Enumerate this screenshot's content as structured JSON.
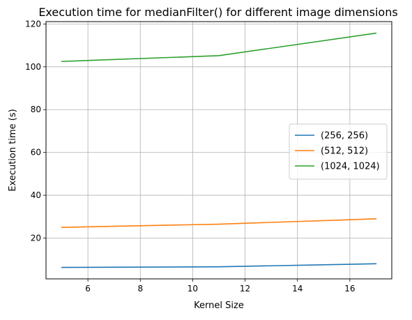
{
  "chart_data": {
    "type": "line",
    "title": "Execution time for medianFilter() for different image dimensions",
    "xlabel": "Kernel Size",
    "ylabel": "Execution time (s)",
    "xlim": [
      4.4,
      17.6
    ],
    "ylim": [
      0.95,
      121.1
    ],
    "xticks": [
      6,
      8,
      10,
      12,
      14,
      16
    ],
    "yticks": [
      20,
      40,
      60,
      80,
      100,
      120
    ],
    "grid": true,
    "legend_position": "center-right",
    "x": [
      5,
      11,
      17
    ],
    "series": [
      {
        "name": "(256, 256)",
        "color": "#1f77b4",
        "values": [
          6.3,
          6.6,
          8.0
        ]
      },
      {
        "name": "(512, 512)",
        "color": "#ff7f0e",
        "values": [
          25.0,
          26.5,
          29.0
        ]
      },
      {
        "name": "(1024, 1024)",
        "color": "#2ca02c",
        "values": [
          102.5,
          105.2,
          115.7
        ]
      }
    ]
  }
}
